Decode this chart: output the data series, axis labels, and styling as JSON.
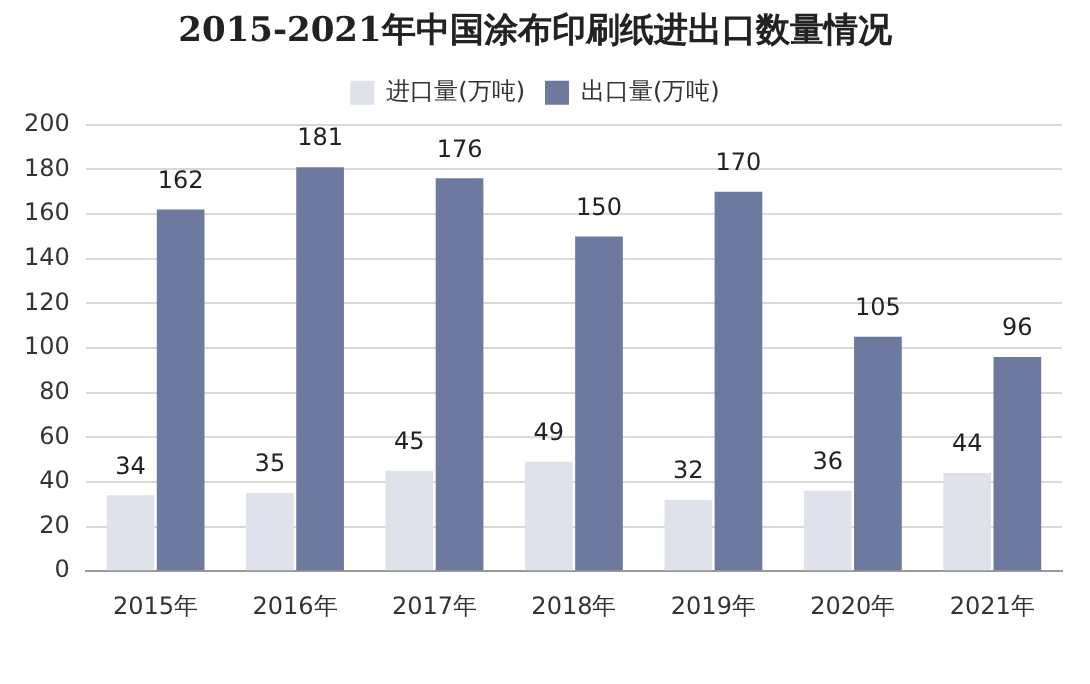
{
  "chart_data": {
    "type": "bar",
    "title": "2015-2021年中国涂布印刷纸进出口数量情况",
    "categories": [
      "2015年",
      "2016年",
      "2017年",
      "2018年",
      "2019年",
      "2020年",
      "2021年"
    ],
    "series": [
      {
        "name": "进口量(万吨)",
        "color": "#dfe2ea",
        "values": [
          34,
          35,
          45,
          49,
          32,
          36,
          44
        ]
      },
      {
        "name": "出口量(万吨)",
        "color": "#6e79a0",
        "values": [
          162,
          181,
          176,
          150,
          170,
          105,
          96
        ]
      }
    ],
    "ylim": [
      0,
      200
    ],
    "yticks": [
      0,
      20,
      40,
      60,
      80,
      100,
      120,
      140,
      160,
      180,
      200
    ],
    "grid": "y",
    "legend": "top",
    "data_labels": true
  }
}
